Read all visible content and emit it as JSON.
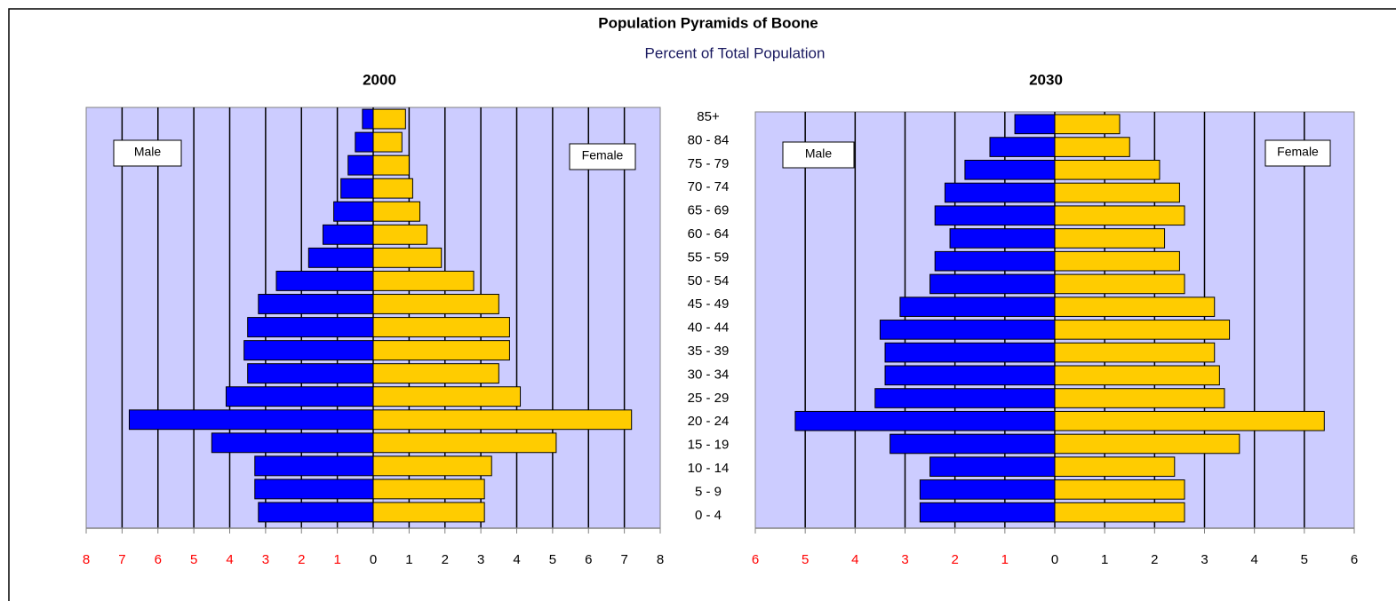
{
  "chart_data": {
    "type": "pyramid",
    "title": "Population Pyramids of Boone",
    "subtitle": "Percent of Total Population",
    "categories": [
      "85+",
      "80 - 84",
      "75 - 79",
      "70 - 74",
      "65 - 69",
      "60 - 64",
      "55 - 59",
      "50 - 54",
      "45 - 49",
      "40 - 44",
      "35 - 39",
      "30 - 34",
      "25 - 29",
      "20 - 24",
      "15 - 19",
      "10 - 14",
      "5 - 9",
      "0 - 4"
    ],
    "panels": [
      {
        "title": "2000",
        "xlim": [
          -8,
          8
        ],
        "xticks": [
          {
            "value": -8,
            "label": "8"
          },
          {
            "value": -7,
            "label": "7"
          },
          {
            "value": -6,
            "label": "6"
          },
          {
            "value": -5,
            "label": "5"
          },
          {
            "value": -4,
            "label": "4"
          },
          {
            "value": -3,
            "label": "3"
          },
          {
            "value": -2,
            "label": "2"
          },
          {
            "value": -1,
            "label": "1"
          },
          0,
          1,
          2,
          3,
          4,
          5,
          6,
          7,
          8
        ],
        "grid": true,
        "series": [
          {
            "name": "Male",
            "color": "#0000ff",
            "values": [
              -0.3,
              -0.5,
              -0.7,
              -0.9,
              -1.1,
              -1.4,
              -1.8,
              -2.7,
              -3.2,
              -3.5,
              -3.6,
              -3.5,
              -4.1,
              -6.8,
              -4.5,
              -3.3,
              -3.3,
              -3.2
            ]
          },
          {
            "name": "Female",
            "color": "#ffcc00",
            "values": [
              0.9,
              0.8,
              1.0,
              1.1,
              1.3,
              1.5,
              1.9,
              2.8,
              3.5,
              3.8,
              3.8,
              3.5,
              4.1,
              7.2,
              5.1,
              3.3,
              3.1,
              3.1
            ]
          }
        ]
      },
      {
        "title": "2030",
        "xlim": [
          -6,
          6
        ],
        "xticks": [
          {
            "value": -6,
            "label": "6"
          },
          {
            "value": -5,
            "label": "5"
          },
          {
            "value": -4,
            "label": "4"
          },
          {
            "value": -3,
            "label": "3"
          },
          {
            "value": -2,
            "label": "2"
          },
          {
            "value": -1,
            "label": "1"
          },
          0,
          1,
          2,
          3,
          4,
          5,
          6
        ],
        "grid": true,
        "series": [
          {
            "name": "Male",
            "color": "#0000ff",
            "values": [
              -0.8,
              -1.3,
              -1.8,
              -2.2,
              -2.4,
              -2.1,
              -2.4,
              -2.5,
              -3.1,
              -3.5,
              -3.4,
              -3.4,
              -3.6,
              -5.2,
              -3.3,
              -2.5,
              -2.7,
              -2.7
            ]
          },
          {
            "name": "Female",
            "color": "#ffcc00",
            "values": [
              1.3,
              1.5,
              2.1,
              2.5,
              2.6,
              2.2,
              2.5,
              2.6,
              3.2,
              3.5,
              3.2,
              3.3,
              3.4,
              5.4,
              3.7,
              2.4,
              2.6,
              2.6
            ]
          }
        ]
      }
    ]
  }
}
